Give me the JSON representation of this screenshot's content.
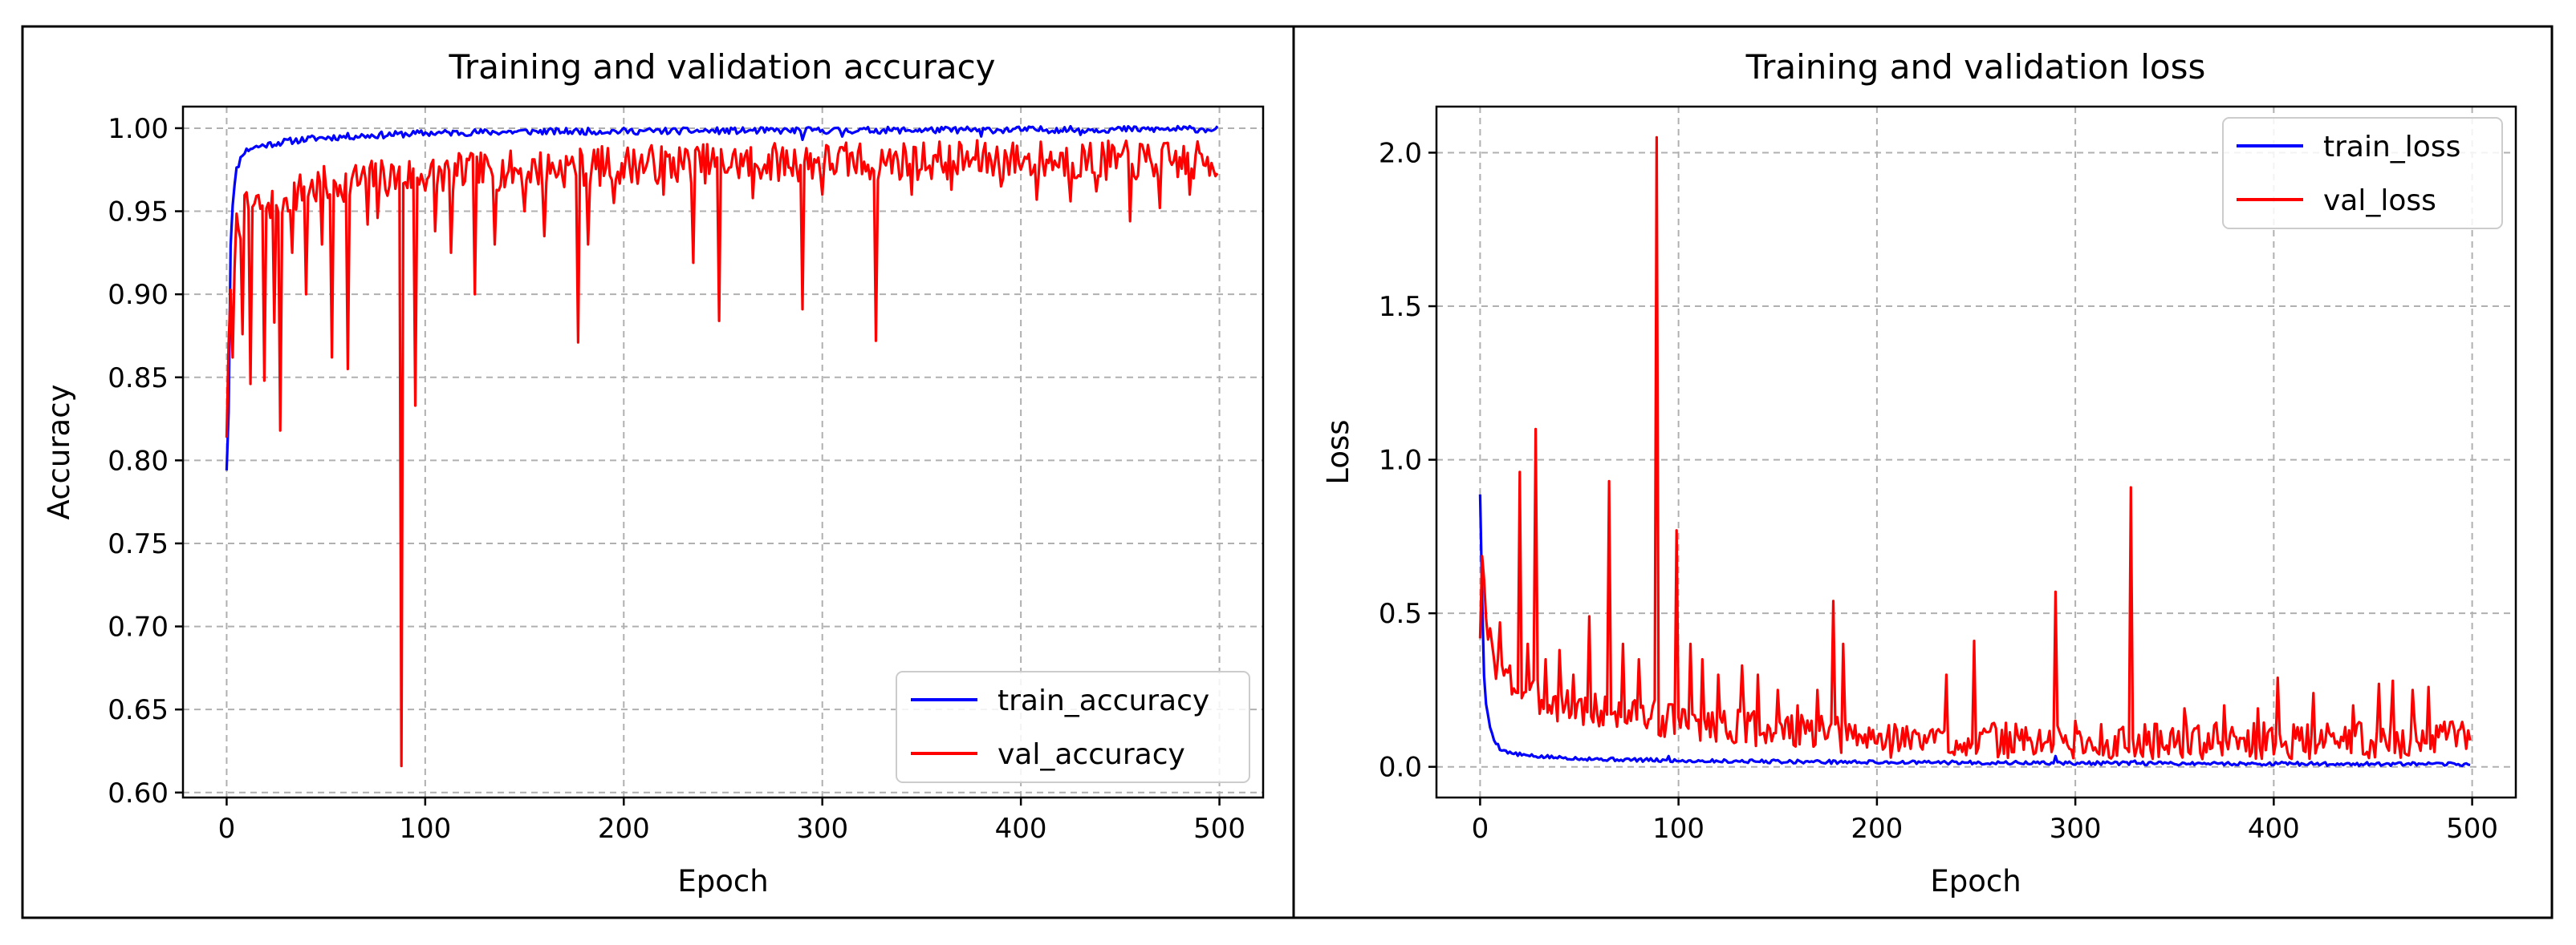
{
  "colors": {
    "train": "#0000ff",
    "val": "#ff0000",
    "grid": "#b0b0b0",
    "frame": "#000000"
  },
  "chart_data": [
    {
      "type": "line",
      "title": "Training and validation accuracy",
      "xlabel": "Epoch",
      "ylabel": "Accuracy",
      "xlim": [
        -22,
        522
      ],
      "ylim": [
        0.597,
        1.013
      ],
      "xticks": [
        0,
        100,
        200,
        300,
        400,
        500
      ],
      "yticks": [
        0.6,
        0.65,
        0.7,
        0.75,
        0.8,
        0.85,
        0.9,
        0.95,
        1.0
      ],
      "ytick_decimals": 2,
      "grid": true,
      "legend": "lower-right",
      "series": [
        {
          "name": "train_accuracy",
          "color": "#0000ff",
          "base": 0.9985,
          "amp": 0.002,
          "seed": 11,
          "minmode": true,
          "points": [
            [
              0,
              0.795
            ],
            [
              1,
              0.83
            ],
            [
              2,
              0.93
            ],
            [
              3,
              0.955
            ],
            [
              5,
              0.975
            ],
            [
              8,
              0.985
            ],
            [
              12,
              0.988
            ],
            [
              20,
              0.99
            ],
            [
              30,
              0.992
            ],
            [
              45,
              0.994
            ],
            [
              60,
              0.995
            ],
            [
              100,
              0.997
            ],
            [
              150,
              0.998
            ],
            [
              499,
              0.9995
            ]
          ],
          "dips": [
            [
              290,
              0.993
            ],
            [
              310,
              0.995
            ],
            [
              380,
              0.995
            ],
            [
              430,
              0.996
            ]
          ]
        },
        {
          "name": "val_accuracy",
          "color": "#ff0000",
          "base": 0.978,
          "amp": 0.012,
          "seed": 7,
          "minmode": true,
          "points": [
            [
              0,
              0.82
            ],
            [
              2,
              0.9
            ],
            [
              5,
              0.94
            ],
            [
              10,
              0.95
            ],
            [
              20,
              0.955
            ],
            [
              40,
              0.963
            ],
            [
              60,
              0.968
            ],
            [
              100,
              0.972
            ],
            [
              150,
              0.975
            ],
            [
              200,
              0.978
            ],
            [
              300,
              0.98
            ],
            [
              400,
              0.981
            ],
            [
              499,
              0.98
            ]
          ],
          "dips": [
            [
              3,
              0.862
            ],
            [
              8,
              0.876
            ],
            [
              12,
              0.846
            ],
            [
              19,
              0.848
            ],
            [
              24,
              0.883
            ],
            [
              27,
              0.818
            ],
            [
              33,
              0.925
            ],
            [
              40,
              0.9
            ],
            [
              48,
              0.93
            ],
            [
              53,
              0.862
            ],
            [
              61,
              0.855
            ],
            [
              71,
              0.942
            ],
            [
              76,
              0.946
            ],
            [
              88,
              0.616
            ],
            [
              95,
              0.833
            ],
            [
              105,
              0.938
            ],
            [
              113,
              0.925
            ],
            [
              125,
              0.9
            ],
            [
              135,
              0.93
            ],
            [
              150,
              0.95
            ],
            [
              160,
              0.935
            ],
            [
              177,
              0.871
            ],
            [
              182,
              0.93
            ],
            [
              195,
              0.955
            ],
            [
              220,
              0.96
            ],
            [
              235,
              0.919
            ],
            [
              248,
              0.884
            ],
            [
              265,
              0.958
            ],
            [
              290,
              0.891
            ],
            [
              300,
              0.96
            ],
            [
              327,
              0.872
            ],
            [
              345,
              0.96
            ],
            [
              365,
              0.963
            ],
            [
              390,
              0.965
            ],
            [
              408,
              0.957
            ],
            [
              425,
              0.956
            ],
            [
              438,
              0.962
            ],
            [
              455,
              0.944
            ],
            [
              470,
              0.952
            ],
            [
              485,
              0.96
            ]
          ]
        }
      ]
    },
    {
      "type": "line",
      "title": "Training and validation loss",
      "xlabel": "Epoch",
      "ylabel": "Loss",
      "xlim": [
        -22,
        522
      ],
      "ylim": [
        -0.1,
        2.15
      ],
      "xticks": [
        0,
        100,
        200,
        300,
        400,
        500
      ],
      "yticks": [
        0.0,
        0.5,
        1.0,
        1.5,
        2.0
      ],
      "ytick_decimals": 1,
      "grid": true,
      "legend": "upper-right",
      "series": [
        {
          "name": "train_loss",
          "color": "#0000ff",
          "base": 0.012,
          "amp": 0.006,
          "seed": 5,
          "minmode": false,
          "points": [
            [
              0,
              0.89
            ],
            [
              1,
              0.55
            ],
            [
              2,
              0.3
            ],
            [
              3,
              0.2
            ],
            [
              5,
              0.13
            ],
            [
              7,
              0.09
            ],
            [
              10,
              0.06
            ],
            [
              15,
              0.045
            ],
            [
              25,
              0.035
            ],
            [
              40,
              0.03
            ],
            [
              60,
              0.025
            ],
            [
              100,
              0.02
            ],
            [
              200,
              0.015
            ],
            [
              300,
              0.012
            ],
            [
              499,
              0.008
            ]
          ],
          "dips": [
            [
              55,
              0.03
            ],
            [
              95,
              0.035
            ],
            [
              150,
              0.022
            ],
            [
              290,
              0.035
            ],
            [
              330,
              0.02
            ]
          ]
        },
        {
          "name": "val_loss",
          "color": "#ff0000",
          "base": 0.08,
          "amp": 0.06,
          "seed": 3,
          "minmode": false,
          "points": [
            [
              0,
              0.45
            ],
            [
              1,
              0.68
            ],
            [
              3,
              0.45
            ],
            [
              10,
              0.3
            ],
            [
              30,
              0.22
            ],
            [
              60,
              0.18
            ],
            [
              100,
              0.15
            ],
            [
              150,
              0.12
            ],
            [
              200,
              0.09
            ],
            [
              300,
              0.08
            ],
            [
              499,
              0.09
            ]
          ],
          "dips": [
            [
              5,
              0.45
            ],
            [
              10,
              0.47
            ],
            [
              15,
              0.32
            ],
            [
              20,
              0.96
            ],
            [
              24,
              0.4
            ],
            [
              28,
              1.1
            ],
            [
              33,
              0.35
            ],
            [
              40,
              0.38
            ],
            [
              47,
              0.3
            ],
            [
              55,
              0.49
            ],
            [
              65,
              0.93
            ],
            [
              72,
              0.4
            ],
            [
              80,
              0.35
            ],
            [
              89,
              2.05
            ],
            [
              99,
              0.77
            ],
            [
              106,
              0.4
            ],
            [
              112,
              0.35
            ],
            [
              120,
              0.3
            ],
            [
              132,
              0.33
            ],
            [
              140,
              0.3
            ],
            [
              150,
              0.25
            ],
            [
              160,
              0.2
            ],
            [
              170,
              0.25
            ],
            [
              178,
              0.54
            ],
            [
              183,
              0.4
            ],
            [
              210,
              0.12
            ],
            [
              235,
              0.3
            ],
            [
              249,
              0.41
            ],
            [
              270,
              0.14
            ],
            [
              290,
              0.57
            ],
            [
              300,
              0.15
            ],
            [
              328,
              0.91
            ],
            [
              340,
              0.14
            ],
            [
              355,
              0.19
            ],
            [
              375,
              0.2
            ],
            [
              392,
              0.19
            ],
            [
              402,
              0.29
            ],
            [
              420,
              0.24
            ],
            [
              440,
              0.2
            ],
            [
              453,
              0.27
            ],
            [
              460,
              0.28
            ],
            [
              470,
              0.25
            ],
            [
              478,
              0.26
            ],
            [
              488,
              0.11
            ]
          ]
        }
      ]
    }
  ]
}
